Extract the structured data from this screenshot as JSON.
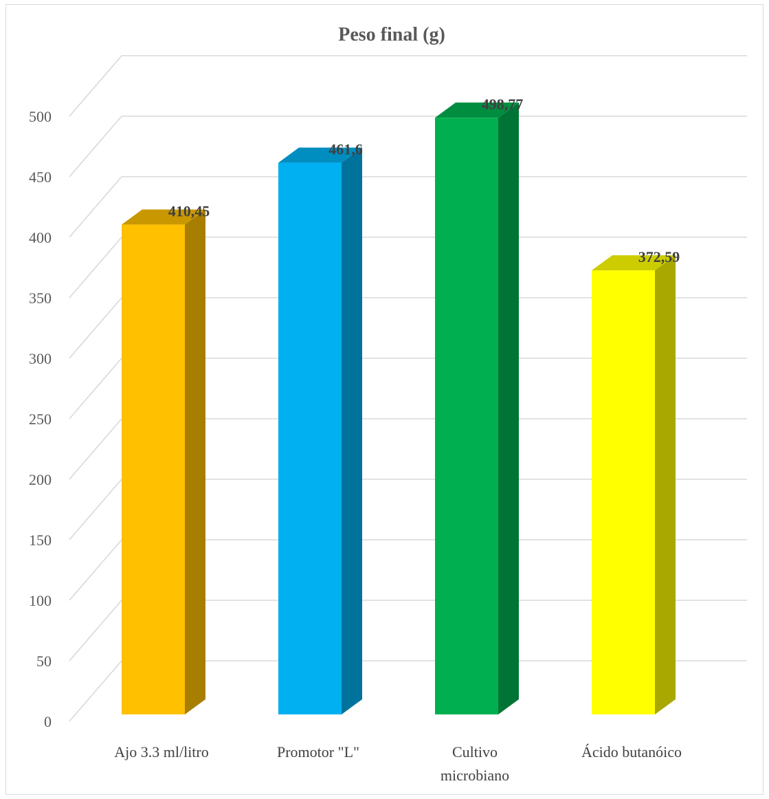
{
  "chart_data": {
    "type": "bar",
    "title": "Peso final (g)",
    "categories": [
      [
        "Ajo 3.3 ml/litro"
      ],
      [
        "Promotor \"L\""
      ],
      [
        "Cultivo",
        "microbiano"
      ],
      [
        "Ácido butanóico"
      ]
    ],
    "values": [
      410.45,
      461.6,
      498.77,
      372.59
    ],
    "data_labels": [
      "410,45",
      "461,6",
      "498,77",
      "372,59"
    ],
    "yticks": [
      0,
      50,
      100,
      150,
      200,
      250,
      300,
      350,
      400,
      450,
      500
    ],
    "ylim": [
      0,
      500
    ],
    "xlabel": "",
    "ylabel": "",
    "grid": true,
    "style": "3d-columns",
    "colors": [
      {
        "front": "#FFC000",
        "side": "#A87E00",
        "top": "#C99800"
      },
      {
        "front": "#00B0F0",
        "side": "#00739C",
        "top": "#008DC0"
      },
      {
        "front": "#00B050",
        "side": "#007434",
        "top": "#008D40"
      },
      {
        "front": "#FFFF00",
        "side": "#A8A800",
        "top": "#CCCC00"
      }
    ]
  }
}
